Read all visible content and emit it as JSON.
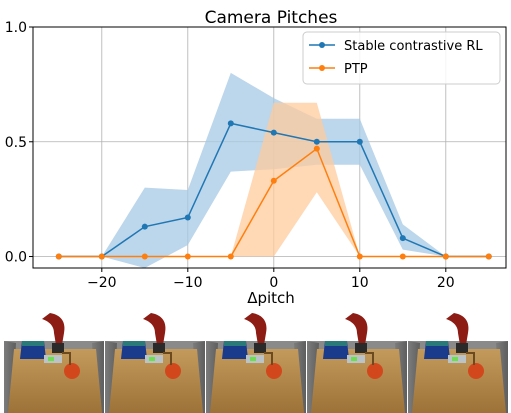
{
  "chart_data": {
    "type": "line",
    "title": "Camera Pitches",
    "xlabel": "Δpitch",
    "ylabel": "",
    "x": [
      -25,
      -20,
      -15,
      -10,
      -5,
      0,
      5,
      10,
      15,
      20,
      25
    ],
    "xlim": [
      -28,
      27
    ],
    "ylim": [
      -0.05,
      1.0
    ],
    "xticks": [
      -20,
      -10,
      0,
      10,
      20
    ],
    "xtick_labels": [
      "−20",
      "−10",
      "0",
      "10",
      "20"
    ],
    "yticks": [
      0.0,
      0.5,
      1.0
    ],
    "ytick_labels": [
      "0.0",
      "0.5",
      "1.0"
    ],
    "grid": true,
    "legend_position": "top-right",
    "series": [
      {
        "name": "Stable contrastive RL",
        "color": "#1f77b4",
        "band_color": "#a6c8e4",
        "values": [
          0.0,
          0.0,
          0.13,
          0.17,
          0.58,
          0.54,
          0.5,
          0.5,
          0.08,
          0.0,
          0.0
        ],
        "lower": [
          0.0,
          0.0,
          -0.05,
          0.05,
          0.37,
          0.38,
          0.4,
          0.4,
          0.03,
          0.0,
          0.0
        ],
        "upper": [
          0.0,
          0.0,
          0.3,
          0.29,
          0.8,
          0.69,
          0.6,
          0.6,
          0.14,
          0.0,
          0.0
        ]
      },
      {
        "name": "PTP",
        "color": "#ff7f0e",
        "band_color": "#ffcb9e",
        "values": [
          0.0,
          0.0,
          0.0,
          0.0,
          0.0,
          0.33,
          0.47,
          0.0,
          0.0,
          0.0,
          0.0
        ],
        "lower": [
          0.0,
          0.0,
          0.0,
          0.0,
          0.0,
          0.0,
          0.28,
          0.0,
          0.0,
          0.0,
          0.0
        ],
        "upper": [
          0.0,
          0.0,
          0.0,
          0.0,
          0.0,
          0.67,
          0.67,
          0.0,
          0.0,
          0.0,
          0.0
        ]
      }
    ]
  },
  "thumbnails": [
    {
      "name": "robot-scene-1"
    },
    {
      "name": "robot-scene-2"
    },
    {
      "name": "robot-scene-3"
    },
    {
      "name": "robot-scene-4"
    },
    {
      "name": "robot-scene-5"
    }
  ]
}
